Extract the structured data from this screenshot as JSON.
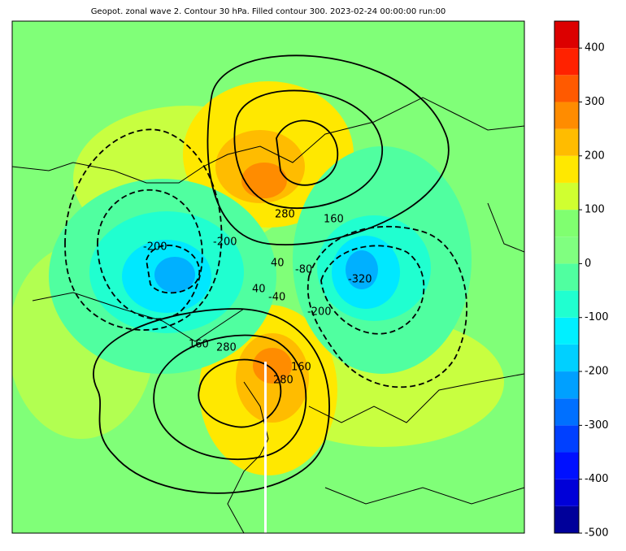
{
  "title": "Geopot. zonal wave 2. Contour 30 hPa. Filled contour 300. 2023-02-24 00:00:00 run:00",
  "colorbar": {
    "levels": [
      -500,
      -450,
      -400,
      -350,
      -300,
      -250,
      -200,
      -150,
      -100,
      -50,
      0,
      50,
      100,
      150,
      200,
      250,
      300,
      350,
      400,
      450
    ],
    "colors": [
      "#00009a",
      "#0000d8",
      "#0010ff",
      "#0040ff",
      "#0070ff",
      "#00a0ff",
      "#00d0ff",
      "#00f0ff",
      "#20ffd0",
      "#50ffa0",
      "#80ff80",
      "#80ff70",
      "#d0ff30",
      "#ffe800",
      "#ffbc00",
      "#ff8c00",
      "#ff5a00",
      "#ff2200",
      "#dc0000",
      "#980000"
    ],
    "ticks": [
      -500,
      -400,
      -300,
      -200,
      -100,
      0,
      100,
      200,
      300,
      400
    ]
  },
  "contour_labels": [
    280,
    160,
    40,
    -80,
    -200,
    -320,
    40,
    -40,
    -200,
    160,
    280,
    160,
    280,
    -200
  ]
}
